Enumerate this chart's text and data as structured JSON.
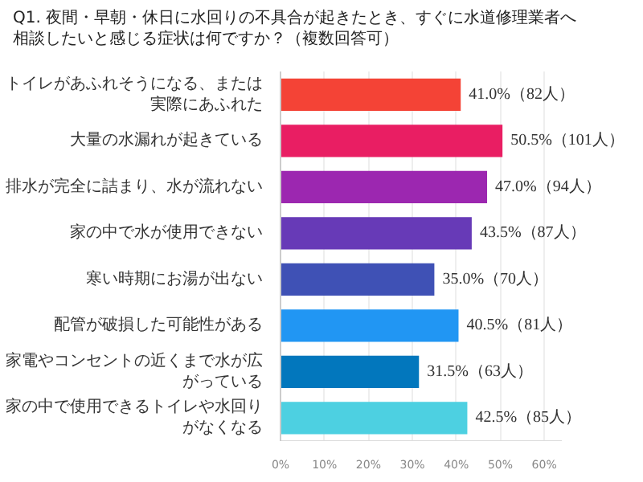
{
  "chart_data": {
    "type": "bar",
    "orientation": "horizontal",
    "title": "Q1. 夜間・早朝・休日に水回りの不具合が起きたとき、すぐに水道修理業者へ相談したいと感じる症状は何ですか？（複数回答可）",
    "categories": [
      "トイレがあふれそうになる、または実際にあふれた",
      "大量の水漏れが起きている",
      "排水が完全に詰まり、水が流れない",
      "家の中で水が使用できない",
      "寒い時期にお湯が出ない",
      "配管が破損した可能性がある",
      "家電やコンセントの近くまで水が広がっている",
      "家の中で使用できるトイレや水回りがなくなる"
    ],
    "values": [
      41.0,
      50.5,
      47.0,
      43.5,
      35.0,
      40.5,
      31.5,
      42.5
    ],
    "colors": [
      "#f44336",
      "#e91e63",
      "#9c27b0",
      "#673ab7",
      "#3f51b5",
      "#2196f3",
      "#0277bd",
      "#4dd0e1"
    ],
    "value_labels": [
      "41.0%（82人）",
      "50.5%（101人）",
      "47.0%（94人）",
      "43.5%（87人）",
      "35.0%（70人）",
      "40.5%（81人）",
      "31.5%（63人）",
      "42.5%（85人）"
    ],
    "xlim": [
      0,
      64
    ],
    "xticks": [
      {
        "value": 0,
        "label": "0%"
      },
      {
        "value": 10,
        "label": "10%"
      },
      {
        "value": 20,
        "label": "20%"
      },
      {
        "value": 30,
        "label": "30%"
      },
      {
        "value": 40,
        "label": "40%"
      },
      {
        "value": 50,
        "label": "50%"
      },
      {
        "value": 60,
        "label": "60%"
      }
    ],
    "grid": "x"
  }
}
